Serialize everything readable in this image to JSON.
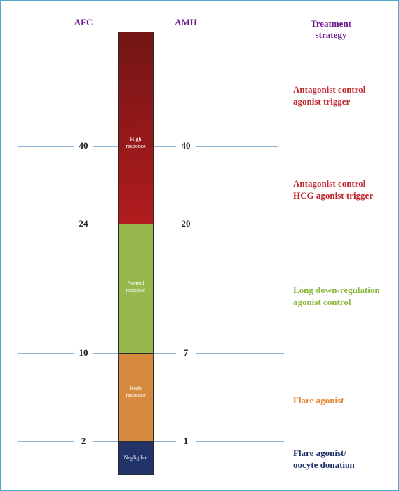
{
  "headers": {
    "afc": "AFC",
    "amh": "AMH",
    "treatment": "Treatment strategy"
  },
  "thresholds": [
    {
      "afc": "40",
      "amh": "40"
    },
    {
      "afc": "24",
      "amh": "20"
    },
    {
      "afc": "10",
      "amh": "7"
    },
    {
      "afc": "2",
      "amh": "1"
    }
  ],
  "segments": [
    {
      "label": "High response",
      "color_top": "#731515",
      "color_bottom": "#b21c1e"
    },
    {
      "label": "Normal response",
      "color": "#97b84d"
    },
    {
      "label": "Redu response",
      "color": "#d68a3e"
    },
    {
      "label": "Negligible",
      "color": "#22336a"
    }
  ],
  "strategies": [
    {
      "text": "Antagonist control agonist trigger",
      "color": "#c0272d"
    },
    {
      "text": "Antagonist control HCG agonist trigger",
      "color": "#c0272d"
    },
    {
      "text": "Long down-regulation agonist control",
      "color": "#8db83f"
    },
    {
      "text": "Flare agonist",
      "color": "#e38a3a"
    },
    {
      "text": "Flare agonist/ oocyte donation",
      "color": "#22336a"
    }
  ]
}
